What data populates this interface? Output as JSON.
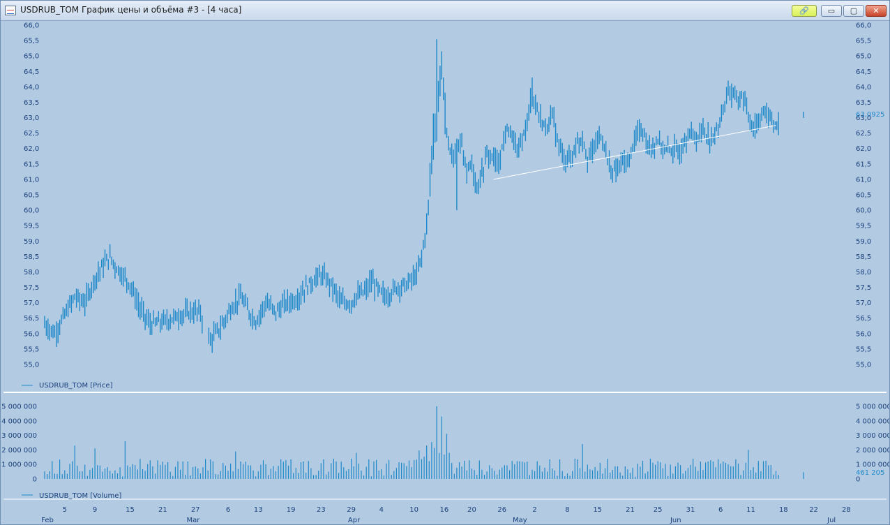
{
  "window": {
    "title": "USDRUB_TOM График цены и объёма #3 - [4 часа]",
    "link_icon": "link-icon",
    "buttons": {
      "minimize": "▭",
      "maximize": "▢",
      "close": "✕"
    }
  },
  "colors": {
    "background": "#b2cbe3",
    "series": "#1f88c8",
    "axis_text": "#1a3f7a",
    "trendline": "#ffffff",
    "separator": "#ffffff"
  },
  "chart_data": [
    {
      "type": "ohlc",
      "legend": "USDRUB_TOM [Price]",
      "ylim": [
        55.0,
        66.0
      ],
      "yticks": [
        "55,0",
        "55,5",
        "56,0",
        "56,5",
        "57,0",
        "57,5",
        "58,0",
        "58,5",
        "59,0",
        "59,5",
        "60,0",
        "60,5",
        "61,0",
        "61,5",
        "62,0",
        "62,5",
        "63,0",
        "63,5",
        "64,0",
        "64,5",
        "65,0",
        "65,5",
        "66,0"
      ],
      "last_value_label": "63,0925",
      "last_value": 63.0925,
      "trendline": {
        "from": [
          89.3,
          61.0
        ],
        "to": [
          145.5,
          62.75
        ]
      },
      "price_path": [
        [
          0,
          56.3
        ],
        [
          2,
          56.0
        ],
        [
          4,
          56.6
        ],
        [
          6,
          57.2
        ],
        [
          8,
          57.0
        ],
        [
          10,
          57.8
        ],
        [
          12,
          58.3
        ],
        [
          13,
          58.5
        ],
        [
          14,
          58.2
        ],
        [
          16,
          57.8
        ],
        [
          17,
          57.6
        ],
        [
          19,
          56.8
        ],
        [
          21,
          56.3
        ],
        [
          24,
          56.4
        ],
        [
          27,
          56.6
        ],
        [
          29,
          56.7
        ],
        [
          31,
          56.7
        ],
        [
          32,
          56.0
        ],
        [
          33,
          55.8
        ],
        [
          35,
          56.2
        ],
        [
          37,
          56.8
        ],
        [
          39,
          57.2
        ],
        [
          41,
          56.6
        ],
        [
          42,
          56.4
        ],
        [
          44,
          57.0
        ],
        [
          46,
          56.7
        ],
        [
          48,
          57.0
        ],
        [
          50,
          57.1
        ],
        [
          52,
          57.5
        ],
        [
          54,
          57.8
        ],
        [
          55,
          57.9
        ],
        [
          57,
          57.6
        ],
        [
          59,
          57.0
        ],
        [
          61,
          57.0
        ],
        [
          62,
          57.2
        ],
        [
          64,
          57.4
        ],
        [
          65,
          57.7
        ],
        [
          67,
          57.3
        ],
        [
          68,
          57.2
        ],
        [
          70,
          57.5
        ],
        [
          72,
          57.6
        ],
        [
          74,
          57.9
        ],
        [
          75,
          58.5
        ],
        [
          76,
          59.5
        ],
        [
          77,
          61.5
        ],
        [
          78,
          63.5
        ],
        [
          79,
          64.5
        ],
        [
          80,
          62.5
        ],
        [
          81,
          61.8
        ],
        [
          82,
          61.8
        ],
        [
          83,
          62.2
        ],
        [
          84,
          61.3
        ],
        [
          85,
          61.5
        ],
        [
          86,
          60.8
        ],
        [
          87,
          61.2
        ],
        [
          88,
          61.8
        ],
        [
          89,
          61.8
        ],
        [
          90,
          61.5
        ],
        [
          91,
          62.0
        ],
        [
          92,
          62.6
        ],
        [
          93,
          62.4
        ],
        [
          94,
          61.9
        ],
        [
          95,
          62.2
        ],
        [
          96,
          62.9
        ],
        [
          97,
          63.8
        ],
        [
          98,
          63.3
        ],
        [
          99,
          62.8
        ],
        [
          100,
          62.7
        ],
        [
          101,
          63.1
        ],
        [
          102,
          62.3
        ],
        [
          103,
          61.8
        ],
        [
          104,
          61.6
        ],
        [
          105,
          61.8
        ],
        [
          106,
          62.2
        ],
        [
          107,
          62.4
        ],
        [
          108,
          61.7
        ],
        [
          109,
          61.9
        ],
        [
          110,
          62.3
        ],
        [
          111,
          62.4
        ],
        [
          112,
          61.6
        ],
        [
          113,
          61.2
        ],
        [
          114,
          61.4
        ],
        [
          115,
          61.6
        ],
        [
          116,
          61.5
        ],
        [
          117,
          62.1
        ],
        [
          118,
          62.5
        ],
        [
          119,
          62.6
        ],
        [
          120,
          62.2
        ],
        [
          121,
          62.0
        ],
        [
          122,
          62.3
        ],
        [
          123,
          62.0
        ],
        [
          124,
          61.9
        ],
        [
          125,
          62.0
        ],
        [
          126,
          61.8
        ],
        [
          127,
          62.1
        ],
        [
          128,
          62.5
        ],
        [
          129,
          62.4
        ],
        [
          130,
          62.3
        ],
        [
          131,
          62.7
        ],
        [
          132,
          62.4
        ],
        [
          133,
          62.3
        ],
        [
          134,
          62.7
        ],
        [
          135,
          63.3
        ],
        [
          136,
          63.9
        ],
        [
          137,
          63.7
        ],
        [
          138,
          63.6
        ],
        [
          139,
          63.7
        ],
        [
          140,
          63.0
        ],
        [
          141,
          62.7
        ],
        [
          142,
          62.9
        ],
        [
          143,
          63.2
        ],
        [
          144,
          63.1
        ],
        [
          145,
          62.8
        ],
        [
          146,
          62.75
        ]
      ],
      "spikes": [
        [
          13,
          58.9,
          "up"
        ],
        [
          33,
          55.6,
          "down"
        ],
        [
          78,
          65.1,
          "up"
        ],
        [
          82,
          60.0,
          "down"
        ],
        [
          97,
          64.3,
          "up"
        ],
        [
          136,
          64.2,
          "up"
        ]
      ]
    },
    {
      "type": "bar",
      "legend": "USDRUB_TOM [Volume]",
      "ylim": [
        0,
        5000000
      ],
      "yticks": [
        "0",
        "1 000 000",
        "2 000 000",
        "3 000 000",
        "4 000 000",
        "5 000 000"
      ],
      "last_value_label": "461 205",
      "last_value": 461205,
      "peaks": [
        [
          6,
          2300000
        ],
        [
          10,
          2100000
        ],
        [
          16,
          2600000
        ],
        [
          38,
          1900000
        ],
        [
          62,
          1800000
        ],
        [
          76,
          2300000
        ],
        [
          78,
          5000000
        ],
        [
          79,
          4300000
        ],
        [
          80,
          3100000
        ],
        [
          107,
          2400000
        ],
        [
          140,
          2000000
        ]
      ]
    }
  ],
  "x_axis": {
    "days": [
      {
        "label": "5",
        "pos": 4
      },
      {
        "label": "9",
        "pos": 10
      },
      {
        "label": "15",
        "pos": 17
      },
      {
        "label": "21",
        "pos": 23.5
      },
      {
        "label": "27",
        "pos": 30
      },
      {
        "label": "6",
        "pos": 36.5
      },
      {
        "label": "13",
        "pos": 42.5
      },
      {
        "label": "19",
        "pos": 49
      },
      {
        "label": "23",
        "pos": 55
      },
      {
        "label": "29",
        "pos": 61
      },
      {
        "label": "4",
        "pos": 67
      },
      {
        "label": "10",
        "pos": 73.5
      },
      {
        "label": "16",
        "pos": 79.5
      },
      {
        "label": "20",
        "pos": 85
      },
      {
        "label": "26",
        "pos": 91
      },
      {
        "label": "2",
        "pos": 97.5
      },
      {
        "label": "8",
        "pos": 104
      },
      {
        "label": "15",
        "pos": 110
      },
      {
        "label": "21",
        "pos": 116.5
      },
      {
        "label": "25",
        "pos": 122
      },
      {
        "label": "31",
        "pos": 128.5
      },
      {
        "label": "6",
        "pos": 134.5
      },
      {
        "label": "11",
        "pos": 140.5
      },
      {
        "label": "18",
        "pos": 147
      },
      {
        "label": "22",
        "pos": 153
      },
      {
        "label": "28",
        "pos": 159.5
      }
    ],
    "months": [
      {
        "label": "Feb",
        "pos": 0
      },
      {
        "label": "Mar",
        "pos": 29
      },
      {
        "label": "Apr",
        "pos": 61
      },
      {
        "label": "May",
        "pos": 94
      },
      {
        "label": "Jun",
        "pos": 125
      },
      {
        "label": "Jul",
        "pos": 156
      }
    ]
  }
}
